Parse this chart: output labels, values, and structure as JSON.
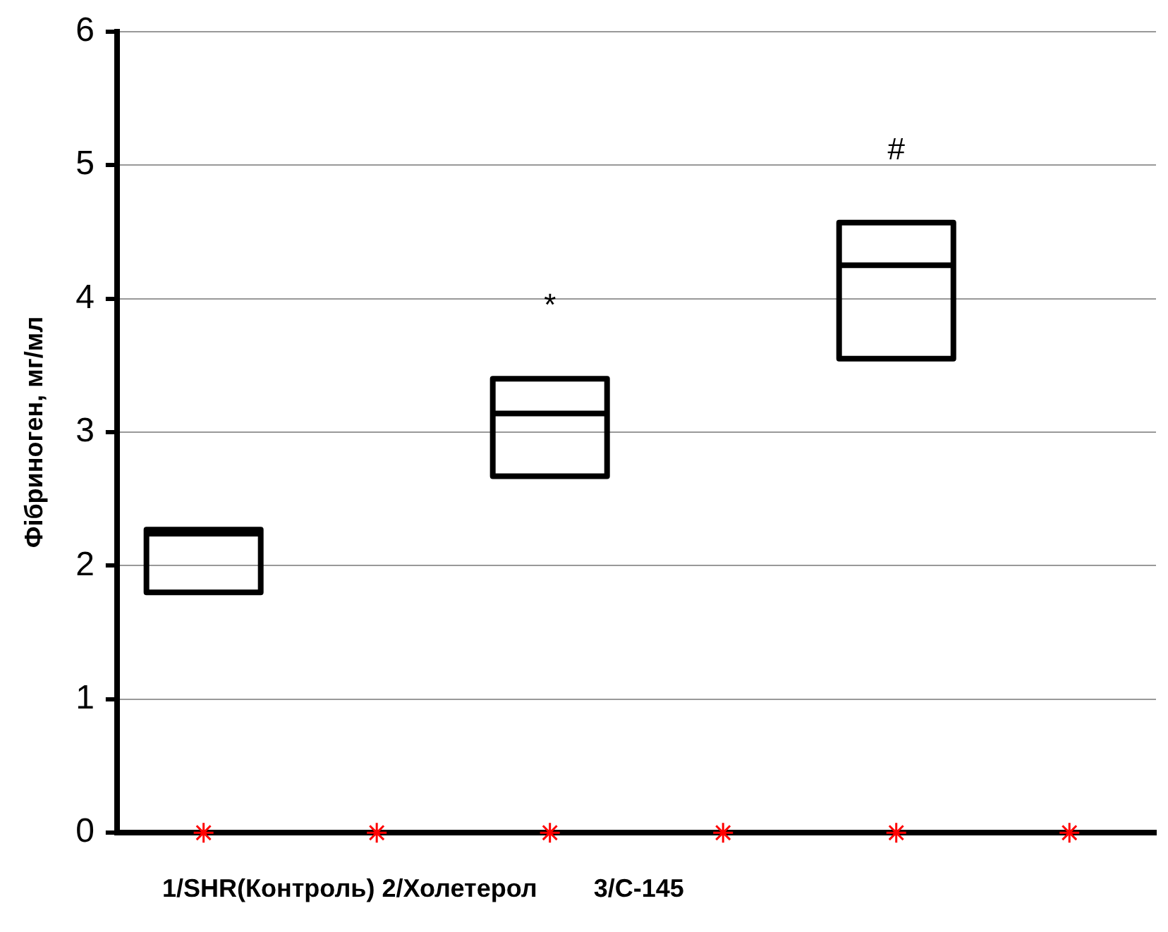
{
  "chart_data": {
    "type": "box",
    "categories": [
      null,
      null,
      null,
      null,
      null,
      null
    ],
    "boxes": [
      {
        "low": 1.8,
        "q1": 1.8,
        "median": 2.24,
        "q3": 2.27,
        "high": 2.27
      },
      null,
      {
        "low": 2.67,
        "q1": 2.67,
        "median": 3.14,
        "q3": 3.4,
        "high": 3.4
      },
      null,
      {
        "low": 3.55,
        "q1": 3.55,
        "median": 4.25,
        "q3": 4.57,
        "high": 4.57
      },
      null
    ],
    "series": [
      {
        "type": "scatter",
        "color": "#ff0000",
        "values": [
          0,
          0,
          0,
          0,
          0,
          0
        ],
        "marker": "cross"
      }
    ],
    "ylim": [
      0,
      6
    ],
    "yticks": [
      0,
      1,
      2,
      3,
      4,
      5,
      6
    ],
    "grid": "y",
    "legend": false,
    "ylabel": "Фібриноген, мг/мл",
    "xlabel": "1/SHR(Контроль) 2/Холетерол        3/С-145",
    "annotations": [
      "*",
      "#"
    ]
  }
}
